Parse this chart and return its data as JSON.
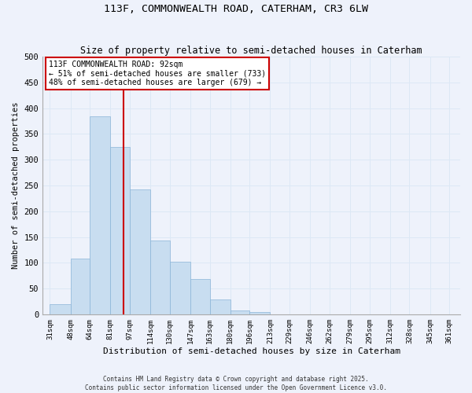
{
  "title1": "113F, COMMONWEALTH ROAD, CATERHAM, CR3 6LW",
  "title2": "Size of property relative to semi-detached houses in Caterham",
  "xlabel": "Distribution of semi-detached houses by size in Caterham",
  "ylabel": "Number of semi-detached properties",
  "bar_left_edges": [
    31,
    48,
    64,
    81,
    97,
    114,
    130,
    147,
    163,
    180,
    196,
    213,
    229,
    246,
    262,
    279,
    295,
    312,
    328,
    345
  ],
  "bar_heights": [
    20,
    108,
    385,
    325,
    243,
    143,
    102,
    68,
    29,
    8,
    5,
    0,
    0,
    0,
    0,
    0,
    0,
    0,
    0,
    0
  ],
  "bar_widths": [
    17,
    16,
    17,
    16,
    17,
    16,
    17,
    16,
    17,
    16,
    17,
    16,
    17,
    16,
    17,
    16,
    17,
    16,
    17,
    16
  ],
  "bar_color": "#c8ddf0",
  "bar_edge_color": "#8ab4d8",
  "vline_x": 92,
  "vline_color": "#cc0000",
  "ylim": [
    0,
    500
  ],
  "xlim": [
    25,
    370
  ],
  "xtick_positions": [
    31,
    48,
    64,
    81,
    97,
    114,
    130,
    147,
    163,
    180,
    196,
    213,
    229,
    246,
    262,
    279,
    295,
    312,
    328,
    345,
    361
  ],
  "xtick_labels": [
    "31sqm",
    "48sqm",
    "64sqm",
    "81sqm",
    "97sqm",
    "114sqm",
    "130sqm",
    "147sqm",
    "163sqm",
    "180sqm",
    "196sqm",
    "213sqm",
    "229sqm",
    "246sqm",
    "262sqm",
    "279sqm",
    "295sqm",
    "312sqm",
    "328sqm",
    "345sqm",
    "361sqm"
  ],
  "ytick_positions": [
    0,
    50,
    100,
    150,
    200,
    250,
    300,
    350,
    400,
    450,
    500
  ],
  "annotation_title": "113F COMMONWEALTH ROAD: 92sqm",
  "annotation_line1": "← 51% of semi-detached houses are smaller (733)",
  "annotation_line2": "48% of semi-detached houses are larger (679) →",
  "annotation_box_color": "#ffffff",
  "annotation_box_edge": "#cc0000",
  "grid_color": "#dce8f5",
  "background_color": "#eef2fb",
  "footer1": "Contains HM Land Registry data © Crown copyright and database right 2025.",
  "footer2": "Contains public sector information licensed under the Open Government Licence v3.0."
}
